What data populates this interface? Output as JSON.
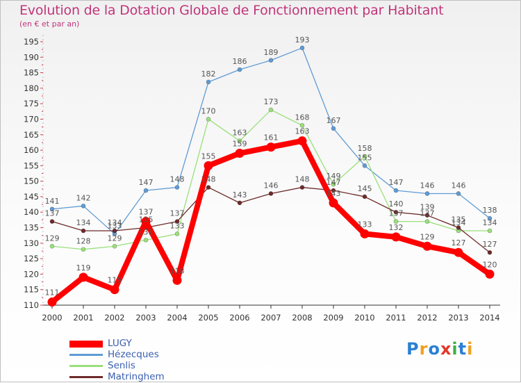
{
  "title": "Evolution de la Dotation Globale de Fonctionnement par Habitant",
  "subtitle": "(en € et par an)",
  "logo": {
    "letters": [
      "P",
      "r",
      "o",
      "x",
      "i",
      "t",
      "i"
    ],
    "colors": [
      "#2a7fd4",
      "#f0a020",
      "#2a7fd4",
      "#e03a2a",
      "#40b040",
      "#2a7fd4",
      "#f0a020"
    ]
  },
  "chart_data": {
    "type": "line",
    "x": [
      "2000",
      "2001",
      "2002",
      "2003",
      "2004",
      "2005",
      "2006",
      "2007",
      "2008",
      "2009",
      "2010",
      "2011",
      "2012",
      "2013",
      "2014"
    ],
    "ylim": [
      110,
      195
    ],
    "yticks": [
      "110",
      "115",
      "120",
      "125",
      "130",
      "135",
      "140",
      "145",
      "150",
      "155",
      "160",
      "165",
      "170",
      "175",
      "180",
      "185",
      "190",
      "195"
    ],
    "grid": false,
    "legend_position": "bottom-left",
    "series": [
      {
        "name": "Hézecques",
        "color": "#5f9bd5",
        "values": [
          141,
          142,
          133,
          147,
          148,
          182,
          186,
          189,
          193,
          167,
          155,
          147,
          146,
          146,
          138
        ]
      },
      {
        "name": "Senlis",
        "color": "#99e07a",
        "values": [
          129,
          128,
          129,
          131,
          133,
          170,
          163,
          173,
          168,
          149,
          158,
          137,
          137,
          134,
          134
        ]
      },
      {
        "name": "Matringhem",
        "color": "#6e2a2a",
        "values": [
          137,
          134,
          134,
          135,
          137,
          148,
          143,
          146,
          148,
          147,
          145,
          140,
          139,
          135,
          127
        ]
      },
      {
        "name": "LUGY",
        "color": "#ff0000",
        "values": [
          111,
          119,
          115,
          137,
          118,
          155,
          159,
          161,
          163,
          143,
          133,
          132,
          129,
          127,
          120
        ]
      }
    ],
    "legend": [
      "LUGY",
      "Hézecques",
      "Senlis",
      "Matringhem"
    ]
  }
}
